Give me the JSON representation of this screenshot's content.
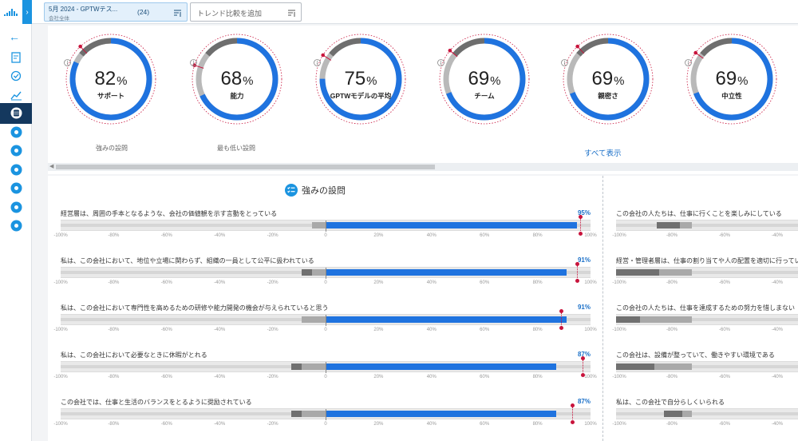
{
  "colors": {
    "accent": "#1b94e0",
    "bar_blue": "#1f73df",
    "benchmark": "#c8143c",
    "nav_active": "#14385e"
  },
  "rail": {
    "logo_icon": "gptw-logo-icon",
    "toggle_icon": "chevron-right-icon",
    "back_icon": "arrow-left-icon",
    "items": [
      {
        "icon": "report-clipboard-icon"
      },
      {
        "icon": "check-clock-icon"
      },
      {
        "icon": "trend-chart-icon"
      },
      {
        "icon": "database-icon",
        "active": true
      },
      {
        "icon": "layers-icon"
      },
      {
        "icon": "list-check-icon"
      },
      {
        "icon": "people-icon"
      },
      {
        "icon": "chat-icon"
      },
      {
        "icon": "chart-board-icon"
      },
      {
        "icon": "user-icon"
      }
    ]
  },
  "topbar": {
    "survey": {
      "name": "5月 2024 - GPTWテス...",
      "sub": "会社全体",
      "count": "(24)"
    },
    "trend_placeholder": "トレンド比較を追加"
  },
  "donuts": [
    {
      "value": "82",
      "unit": "%",
      "label": "サポート",
      "percent": 82,
      "benchmark": 88
    },
    {
      "value": "68",
      "unit": "%",
      "label": "能力",
      "percent": 68,
      "benchmark": 80
    },
    {
      "value": "75",
      "unit": "%",
      "label": "GPTWモデルの平均",
      "percent": 75,
      "benchmark": 84
    },
    {
      "value": "69",
      "unit": "%",
      "label": "チーム",
      "percent": 69,
      "benchmark": 86
    },
    {
      "value": "69",
      "unit": "%",
      "label": "親密さ",
      "percent": 69,
      "benchmark": 88
    },
    {
      "value": "69",
      "unit": "%",
      "label": "中立性",
      "percent": 69,
      "benchmark": 85
    }
  ],
  "panel": {
    "strengths_link": "強みの設問",
    "lowest_link": "最も低い設問",
    "show_all": "すべて表示"
  },
  "section": {
    "title": "強みの設問",
    "icon": "list-check-icon"
  },
  "axis_ticks": [
    "-100%",
    "-80%",
    "-60%",
    "-40%",
    "-20%",
    "0",
    "20%",
    "40%",
    "60%",
    "80%",
    "100%"
  ],
  "right_axis_ticks": [
    "-100%",
    "-80%",
    "-60%",
    "-40%"
  ],
  "questions": [
    {
      "text": "経営層は、周囲の手本となるような、会社の価値観を示す言動をとっている",
      "pct": "95%",
      "positive": 95,
      "neutral": 5,
      "negative": 0,
      "benchmark": 96
    },
    {
      "text": "私は、この会社において、地位や立場に関わらず、組織の一員として公平に扱われている",
      "pct": "91%",
      "positive": 91,
      "neutral": 5,
      "negative": 4,
      "benchmark": 95
    },
    {
      "text": "私は、この会社において専門性を高めるための研修や能力開発の機会が与えられていると思う",
      "pct": "91%",
      "positive": 91,
      "neutral": 9,
      "negative": 0,
      "benchmark": 89
    },
    {
      "text": "私は、この会社において必要なときに休暇がとれる",
      "pct": "87%",
      "positive": 87,
      "neutral": 9,
      "negative": 4,
      "benchmark": 97
    },
    {
      "text": "この会社では、仕事と生活のバランスをとるように奨励されている",
      "pct": "87%",
      "positive": 87,
      "neutral": 9,
      "negative": 4,
      "benchmark": 93
    }
  ],
  "right_questions": [
    {
      "text": "この会社の人たちは、仕事に行くことを楽しみにしている",
      "negative_start": -83,
      "negative_end": -73,
      "neutral_start": -73,
      "neutral_end": -68
    },
    {
      "text": "経営・管理者層は、仕事の割り当てや人の配置を適切に行ってい",
      "negative_start": -100,
      "negative_end": -82,
      "neutral_start": -82,
      "neutral_end": -68
    },
    {
      "text": "この会社の人たちは、仕事を達成するための努力を惜しまない",
      "negative_start": -100,
      "negative_end": -90,
      "neutral_start": -90,
      "neutral_end": -68
    },
    {
      "text": "この会社は、設備が整っていて、働きやすい環境である",
      "negative_start": -100,
      "negative_end": -84,
      "neutral_start": -84,
      "neutral_end": -68
    },
    {
      "text": "私は、この会社で自分らしくいられる",
      "negative_start": -80,
      "negative_end": -72,
      "neutral_start": -72,
      "neutral_end": -68
    }
  ]
}
